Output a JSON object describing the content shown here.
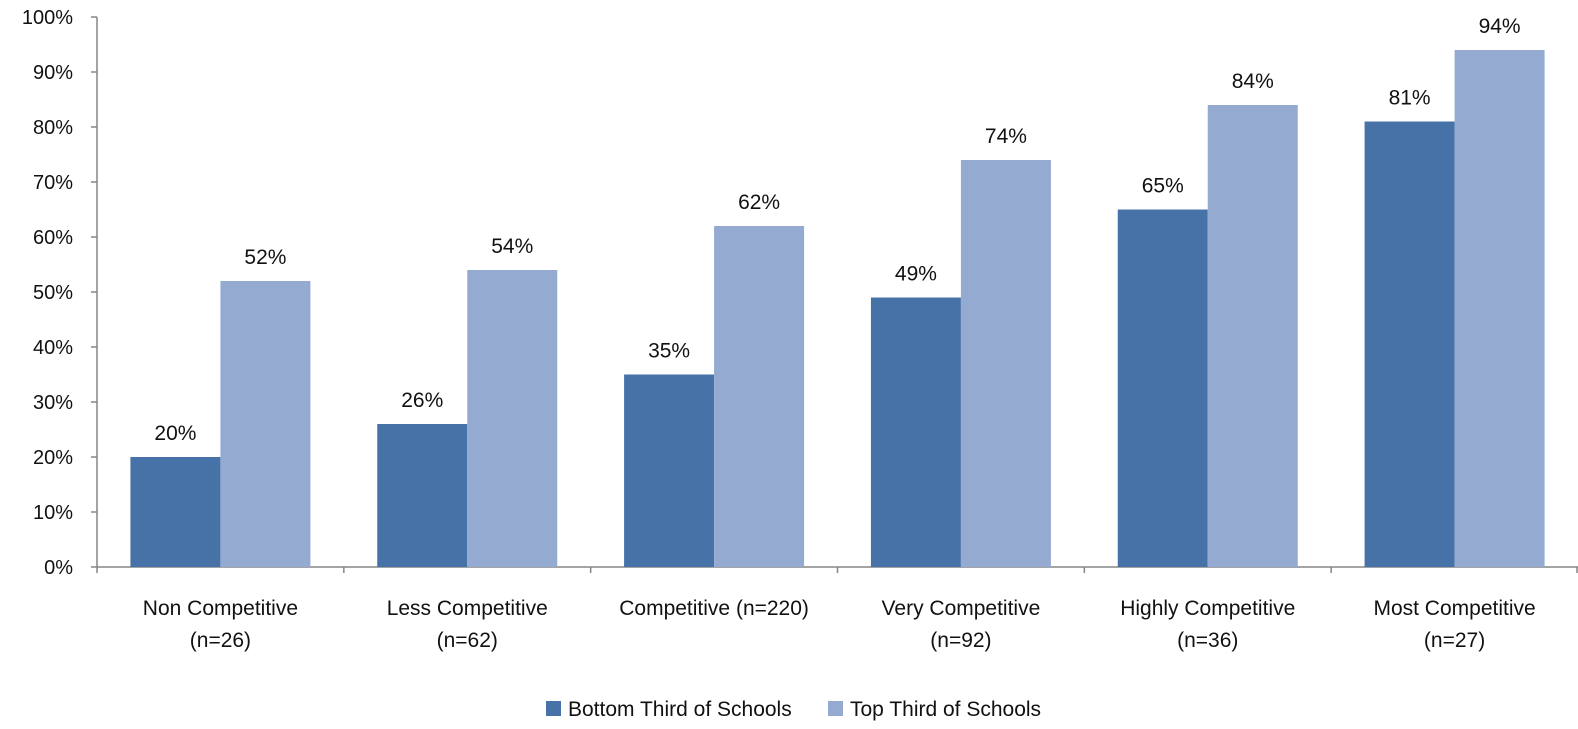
{
  "chart_data": {
    "type": "bar",
    "categories": [
      [
        "Non Competitive",
        "(n=26)"
      ],
      [
        "Less Competitive",
        "(n=62)"
      ],
      [
        "Competitive (n=220)"
      ],
      [
        "Very Competitive",
        "(n=92)"
      ],
      [
        "Highly Competitive",
        "(n=36)"
      ],
      [
        "Most Competitive",
        "(n=27)"
      ]
    ],
    "series": [
      {
        "name": "Bottom Third of Schools",
        "values": [
          20,
          26,
          35,
          49,
          65,
          81
        ],
        "labels": [
          "20%",
          "26%",
          "35%",
          "49%",
          "65%",
          "81%"
        ],
        "color": "#4672a8"
      },
      {
        "name": "Top Third of Schools",
        "values": [
          52,
          54,
          62,
          74,
          84,
          94
        ],
        "labels": [
          "52%",
          "54%",
          "62%",
          "74%",
          "84%",
          "94%"
        ],
        "color": "#94aad1"
      }
    ],
    "ylim": [
      0,
      100
    ],
    "yticks": [
      "0%",
      "10%",
      "20%",
      "30%",
      "40%",
      "50%",
      "60%",
      "70%",
      "80%",
      "90%",
      "100%"
    ],
    "grid": false,
    "legend_position": "bottom",
    "axis_color": "#868686"
  }
}
